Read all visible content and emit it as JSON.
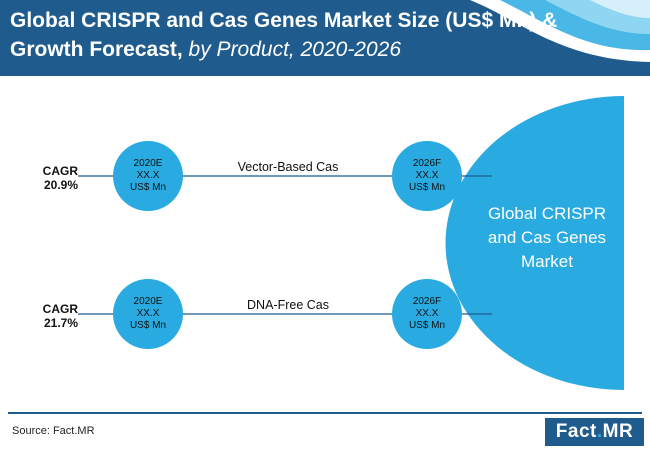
{
  "header": {
    "title_main": "Global CRISPR and Cas Genes Market Size (US$ Mn) &",
    "title_line2": "Growth Forecast,",
    "title_italic": "by Product, 2020-2026"
  },
  "rows": [
    {
      "cagr_label": "CAGR",
      "cagr_value": "20.9%",
      "start": {
        "year": "2020E",
        "value": "XX.X",
        "unit": "US$ Mn"
      },
      "segment": "Vector-Based Cas",
      "end": {
        "year": "2026F",
        "value": "XX.X",
        "unit": "US$ Mn"
      }
    },
    {
      "cagr_label": "CAGR",
      "cagr_value": "21.7%",
      "start": {
        "year": "2020E",
        "value": "XX.X",
        "unit": "US$ Mn"
      },
      "segment": "DNA-Free Cas",
      "end": {
        "year": "2026F",
        "value": "XX.X",
        "unit": "US$ Mn"
      }
    }
  ],
  "market_label": [
    "Global CRISPR",
    "and Cas Genes",
    "Market"
  ],
  "footer": {
    "source": "Source: Fact.MR",
    "logo_main": "Fact",
    "logo_dot": ".",
    "logo_end": "MR"
  },
  "colors": {
    "header_bg": "#1f5b8c",
    "accent": "#29abe2",
    "line": "#1f5b8c"
  }
}
